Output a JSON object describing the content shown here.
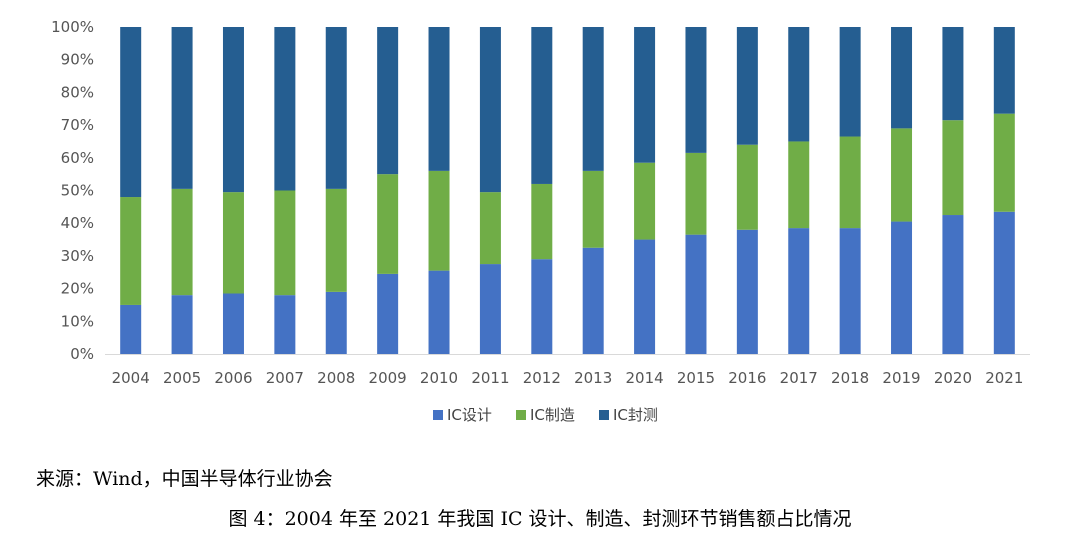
{
  "chart_data": {
    "type": "bar",
    "stacked": true,
    "percent": true,
    "categories": [
      "2004",
      "2005",
      "2006",
      "2007",
      "2008",
      "2009",
      "2010",
      "2011",
      "2012",
      "2013",
      "2014",
      "2015",
      "2016",
      "2017",
      "2018",
      "2019",
      "2020",
      "2021"
    ],
    "series": [
      {
        "name": "IC设计",
        "color": "#4472c4",
        "values": [
          15,
          18,
          18.5,
          18,
          19,
          24.5,
          25.5,
          27.5,
          29,
          32.5,
          35,
          36.5,
          38,
          38.5,
          38.5,
          40.5,
          42.5,
          43.5
        ]
      },
      {
        "name": "IC制造",
        "color": "#70ad47",
        "values": [
          33,
          32.5,
          31,
          32,
          31.5,
          30.5,
          30.5,
          22,
          23,
          23.5,
          23.5,
          25,
          26,
          26.5,
          28,
          28.5,
          29,
          30
        ]
      },
      {
        "name": "IC封测",
        "color": "#255e91",
        "values": [
          52,
          49.5,
          50.5,
          50,
          49.5,
          45,
          44,
          50.5,
          48,
          44,
          41.5,
          38.5,
          36,
          35,
          33.5,
          31,
          28.5,
          26.5
        ]
      }
    ],
    "y_ticks": [
      "0%",
      "10%",
      "20%",
      "30%",
      "40%",
      "50%",
      "60%",
      "70%",
      "80%",
      "90%",
      "100%"
    ],
    "ylim": [
      0,
      100
    ],
    "grid": false,
    "legend_position": "bottom",
    "title": "",
    "xlabel": "",
    "ylabel": ""
  },
  "source_text": "来源：Wind，中国半导体行业协会",
  "caption_text": "图 4：2004 年至 2021 年我国 IC 设计、制造、封测环节销售额占比情况"
}
